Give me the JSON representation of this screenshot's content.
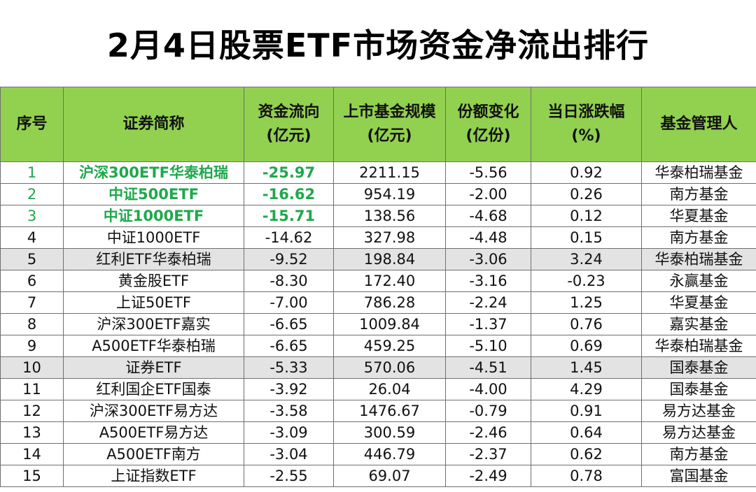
{
  "title": "2月4日股票ETF市场资金净流出排行",
  "colors": {
    "header_bg": "#92d050",
    "highlight_text": "#1fa84b",
    "shaded_row": "#e3e3e3"
  },
  "headers": {
    "rank": [
      "序号"
    ],
    "name": [
      "证券简称"
    ],
    "flow": [
      "资金流向",
      "(亿元)"
    ],
    "scale": [
      "上市基金规模",
      "(亿元)"
    ],
    "share": [
      "份额变化",
      "(亿份)"
    ],
    "change": [
      "当日涨跌幅",
      "(%)"
    ],
    "manager": [
      "基金管理人"
    ]
  },
  "rows": [
    {
      "rank": "1",
      "name": "沪深300ETF华泰柏瑞",
      "flow": "-25.97",
      "scale": "2211.15",
      "share": "-5.56",
      "change": "0.92",
      "manager": "华泰柏瑞基金"
    },
    {
      "rank": "2",
      "name": "中证500ETF",
      "flow": "-16.62",
      "scale": "954.19",
      "share": "-2.00",
      "change": "0.26",
      "manager": "南方基金"
    },
    {
      "rank": "3",
      "name": "中证1000ETF",
      "flow": "-15.71",
      "scale": "138.56",
      "share": "-4.68",
      "change": "0.12",
      "manager": "华夏基金"
    },
    {
      "rank": "4",
      "name": "中证1000ETF",
      "flow": "-14.62",
      "scale": "327.98",
      "share": "-4.48",
      "change": "0.15",
      "manager": "南方基金"
    },
    {
      "rank": "5",
      "name": "红利ETF华泰柏瑞",
      "flow": "-9.52",
      "scale": "198.84",
      "share": "-3.06",
      "change": "3.24",
      "manager": "华泰柏瑞基金"
    },
    {
      "rank": "6",
      "name": "黄金股ETF",
      "flow": "-8.30",
      "scale": "172.40",
      "share": "-3.16",
      "change": "-0.23",
      "manager": "永赢基金"
    },
    {
      "rank": "7",
      "name": "上证50ETF",
      "flow": "-7.00",
      "scale": "786.28",
      "share": "-2.24",
      "change": "1.25",
      "manager": "华夏基金"
    },
    {
      "rank": "8",
      "name": "沪深300ETF嘉实",
      "flow": "-6.65",
      "scale": "1009.84",
      "share": "-1.37",
      "change": "0.76",
      "manager": "嘉实基金"
    },
    {
      "rank": "9",
      "name": "A500ETF华泰柏瑞",
      "flow": "-6.65",
      "scale": "459.25",
      "share": "-5.10",
      "change": "0.69",
      "manager": "华泰柏瑞基金"
    },
    {
      "rank": "10",
      "name": "证券ETF",
      "flow": "-5.33",
      "scale": "570.06",
      "share": "-4.51",
      "change": "1.45",
      "manager": "国泰基金"
    },
    {
      "rank": "11",
      "name": "红利国企ETF国泰",
      "flow": "-3.92",
      "scale": "26.04",
      "share": "-4.00",
      "change": "4.29",
      "manager": "国泰基金"
    },
    {
      "rank": "12",
      "name": "沪深300ETF易方达",
      "flow": "-3.58",
      "scale": "1476.67",
      "share": "-0.79",
      "change": "0.91",
      "manager": "易方达基金"
    },
    {
      "rank": "13",
      "name": "A500ETF易方达",
      "flow": "-3.09",
      "scale": "300.59",
      "share": "-2.46",
      "change": "0.64",
      "manager": "易方达基金"
    },
    {
      "rank": "14",
      "name": "A500ETF南方",
      "flow": "-3.04",
      "scale": "446.79",
      "share": "-2.37",
      "change": "0.62",
      "manager": "南方基金"
    },
    {
      "rank": "15",
      "name": "上证指数ETF",
      "flow": "-2.55",
      "scale": "69.07",
      "share": "-2.49",
      "change": "0.78",
      "manager": "富国基金"
    }
  ]
}
